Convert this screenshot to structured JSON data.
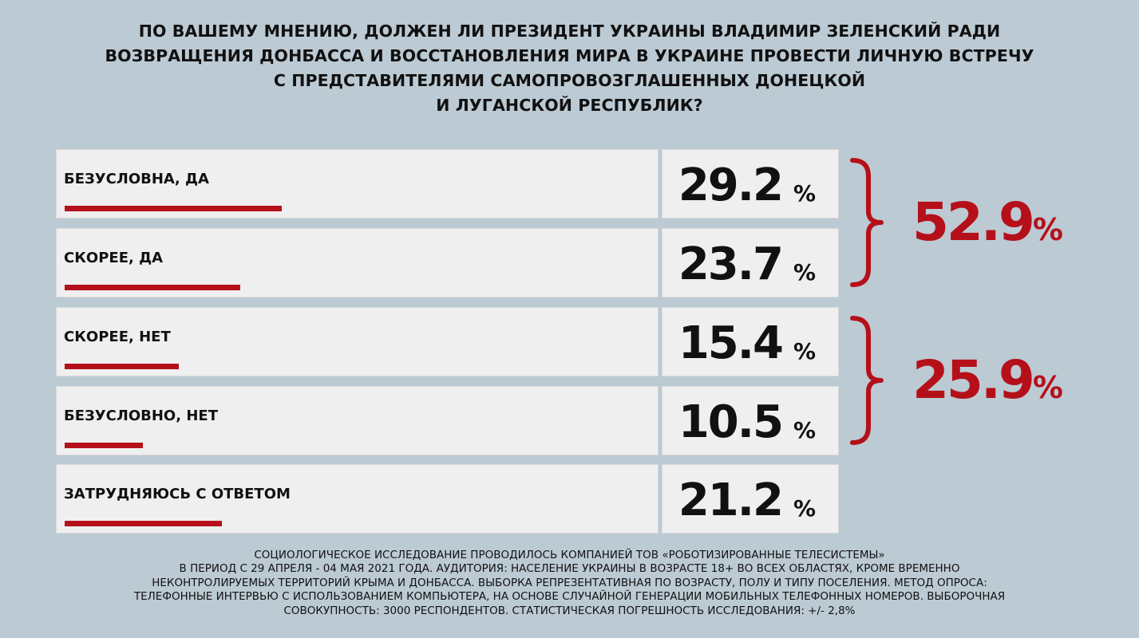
{
  "title_lines": [
    "ПО ВАШЕМУ МНЕНИЮ, ДОЛЖЕН ЛИ ПРЕЗИДЕНТ УКРАИНЫ ВЛАДИМИР ЗЕЛЕНСКИЙ РАДИ",
    "ВОЗВРАЩЕНИЯ ДОНБАССА И ВОССТАНОВЛЕНИЯ МИРА В УКРАИНЕ ПРОВЕСТИ ЛИЧНУЮ ВСТРЕЧУ",
    "С ПРЕДСТАВИТЕЛЯМИ САМОПРОВОЗГЛАШЕННЫХ ДОНЕЦКОЙ",
    "И ЛУГАНСКОЙ РЕСПУБЛИК?"
  ],
  "chart_data": {
    "type": "bar",
    "title": "ПО ВАШЕМУ МНЕНИЮ, ДОЛЖЕН ЛИ ПРЕЗИДЕНТ УКРАИНЫ ВЛАДИМИР ЗЕЛЕНСКИЙ РАДИ ВОЗВРАЩЕНИЯ ДОНБАССА И ВОССТАНОВЛЕНИЯ МИРА В УКРАИНЕ ПРОВЕСТИ ЛИЧНУЮ ВСТРЕЧУ С ПРЕДСТАВИТЕЛЯМИ САМОПРОВОЗГЛАШЕННЫХ ДОНЕЦКОЙ И ЛУГАНСКОЙ РЕСПУБЛИК?",
    "orientation": "horizontal",
    "categories": [
      "БЕЗУСЛОВНА, ДА",
      "СКОРЕЕ, ДА",
      "СКОРЕЕ, НЕТ",
      "БЕЗУСЛОВНО, НЕТ",
      "ЗАТРУДНЯЮСЬ С ОТВЕТОМ"
    ],
    "values": [
      29.2,
      23.7,
      15.4,
      10.5,
      21.2
    ],
    "value_labels": [
      "29.2",
      "23.7",
      "15.4",
      "10.5",
      "21.2"
    ],
    "unit": "%",
    "xlim": [
      0,
      100
    ],
    "grid": false,
    "groups": [
      {
        "members": [
          0,
          1
        ],
        "total_label": "52.9",
        "unit": "%"
      },
      {
        "members": [
          2,
          3
        ],
        "total_label": "25.9",
        "unit": "%"
      }
    ],
    "bar_color": "#b5101a"
  },
  "footnote_lines": [
    "СОЦИОЛОГИЧЕСКОЕ ИССЛЕДОВАНИЕ ПРОВОДИЛОСЬ КОМПАНИЕЙ ТОВ «РОБОТИЗИРОВАННЫЕ ТЕЛЕСИСТЕМЫ»",
    "В ПЕРИОД С 29 АПРЕЛЯ - 04 МАЯ 2021 ГОДА. АУДИТОРИЯ: НАСЕЛЕНИЕ УКРАИНЫ В ВОЗРАСТЕ 18+ ВО ВСЕХ ОБЛАСТЯХ, КРОМЕ ВРЕМЕННО",
    "НЕКОНТРОЛИРУЕМЫХ ТЕРРИТОРИЙ КРЫМА И ДОНБАССА. ВЫБОРКА РЕПРЕЗЕНТАТИВНАЯ ПО ВОЗРАСТУ, ПОЛУ И ТИПУ ПОСЕЛЕНИЯ. МЕТОД ОПРОСА:",
    "ТЕЛЕФОННЫЕ ИНТЕРВЬЮ С ИСПОЛЬЗОВАНИЕМ КОМПЬЮТЕРА, НА ОСНОВЕ СЛУЧАЙНОЙ ГЕНЕРАЦИИ МОБИЛЬНЫХ ТЕЛЕФОННЫХ НОМЕРОВ. ВЫБОРОЧНАЯ",
    "СОВОКУПНОСТЬ: 3000 РЕСПОНДЕНТОВ. СТАТИСТИЧЕСКАЯ ПОГРЕШНОСТЬ ИССЛЕДОВАНИЯ: +/- 2,8%"
  ],
  "colors": {
    "background": "#bccad4",
    "accent": "#b5101a",
    "panel": "#efefef"
  }
}
